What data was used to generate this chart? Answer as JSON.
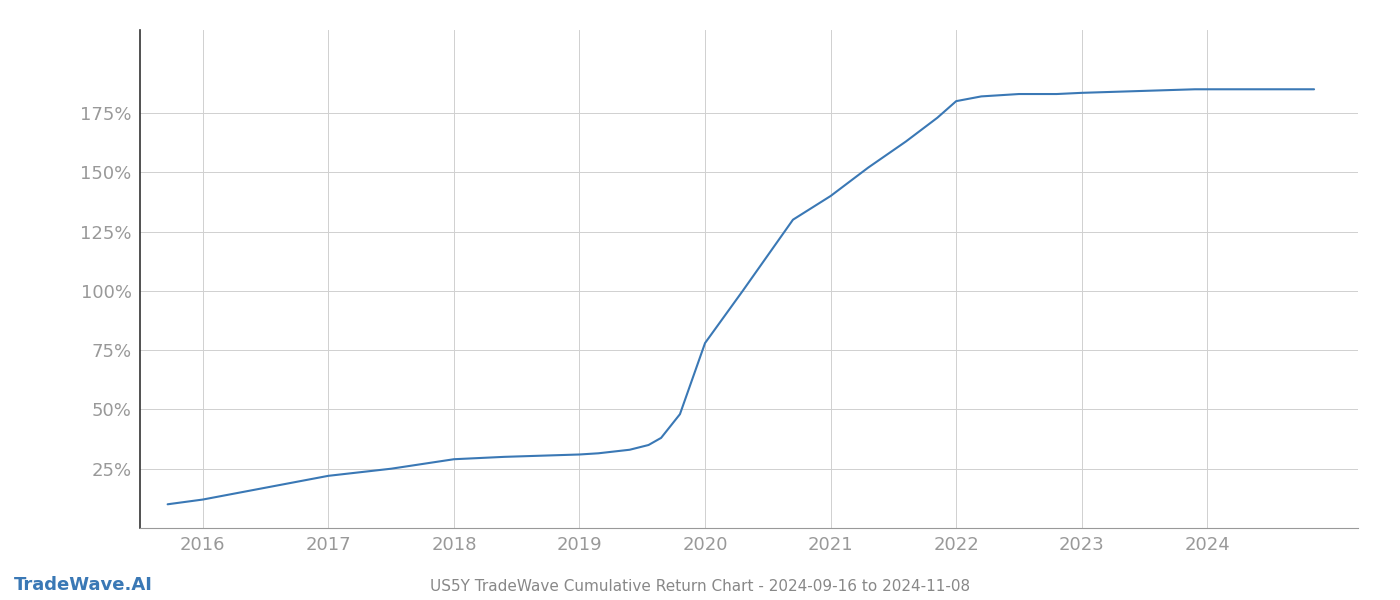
{
  "x_values": [
    2015.72,
    2016.0,
    2016.5,
    2017.0,
    2017.5,
    2018.0,
    2018.4,
    2018.7,
    2019.0,
    2019.15,
    2019.4,
    2019.55,
    2019.65,
    2019.8,
    2020.0,
    2020.3,
    2020.7,
    2021.0,
    2021.3,
    2021.6,
    2021.85,
    2022.0,
    2022.2,
    2022.5,
    2022.8,
    2023.0,
    2023.3,
    2023.6,
    2023.9,
    2024.0,
    2024.4,
    2024.85
  ],
  "y_values": [
    10,
    12,
    17,
    22,
    25,
    29,
    30,
    30.5,
    31,
    31.5,
    33,
    35,
    38,
    48,
    78,
    100,
    130,
    140,
    152,
    163,
    173,
    180,
    182,
    183,
    183,
    183.5,
    184,
    184.5,
    185,
    185,
    185,
    185
  ],
  "line_color": "#3a78b5",
  "line_width": 1.5,
  "title": "US5Y TradeWave Cumulative Return Chart - 2024-09-16 to 2024-11-08",
  "xlabel": "",
  "ylabel": "",
  "yticks": [
    25,
    50,
    75,
    100,
    125,
    150,
    175
  ],
  "ytick_labels": [
    "25%",
    "50%",
    "75%",
    "100%",
    "125%",
    "150%",
    "175%"
  ],
  "xtick_labels": [
    "2016",
    "2017",
    "2018",
    "2019",
    "2020",
    "2021",
    "2022",
    "2023",
    "2024"
  ],
  "xtick_values": [
    2016,
    2017,
    2018,
    2019,
    2020,
    2021,
    2022,
    2023,
    2024
  ],
  "xlim": [
    2015.5,
    2025.2
  ],
  "ylim": [
    0,
    210
  ],
  "background_color": "#ffffff",
  "grid_color": "#d0d0d0",
  "tick_color": "#999999",
  "left_spine_color": "#333333",
  "watermark_text": "TradeWave.AI",
  "watermark_color": "#3a78b5",
  "title_color": "#888888",
  "title_fontsize": 11,
  "watermark_fontsize": 13
}
